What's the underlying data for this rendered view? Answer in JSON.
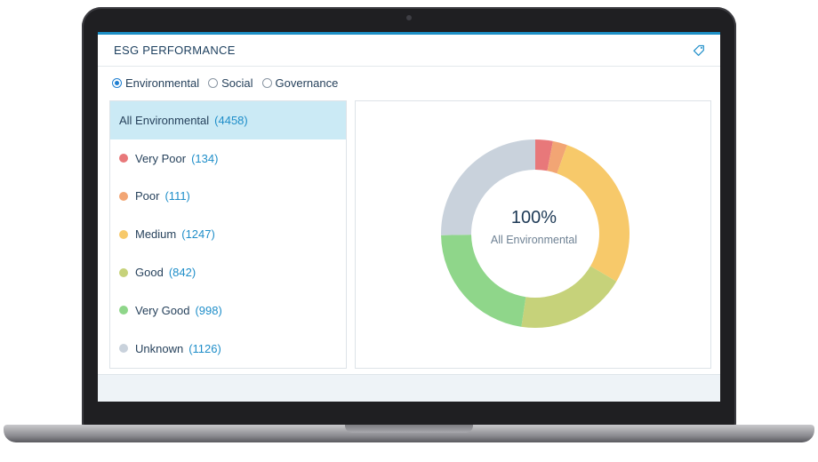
{
  "widget": {
    "title": "ESG PERFORMANCE",
    "icon": "tag-icon"
  },
  "radios": [
    {
      "label": "Environmental",
      "checked": true
    },
    {
      "label": "Social",
      "checked": false
    },
    {
      "label": "Governance",
      "checked": false
    }
  ],
  "legend": [
    {
      "label": "All Environmental",
      "count": "(4458)",
      "color": null,
      "active": true
    },
    {
      "label": "Very Poor",
      "count": "(134)",
      "color": "#e8787a",
      "active": false
    },
    {
      "label": "Poor",
      "count": "(111)",
      "color": "#f2a574",
      "active": false
    },
    {
      "label": "Medium",
      "count": "(1247)",
      "color": "#f7c96a",
      "active": false
    },
    {
      "label": "Good",
      "count": "(842)",
      "color": "#c6d27a",
      "active": false
    },
    {
      "label": "Very Good",
      "count": "(998)",
      "color": "#8fd68a",
      "active": false
    },
    {
      "label": "Unknown",
      "count": "(1126)",
      "color": "#c9d2dc",
      "active": false
    }
  ],
  "center": {
    "percent": "100%",
    "label": "All Environmental"
  },
  "colors": {
    "accent": "#1c8fc6",
    "count_text": "#1f8ec9",
    "active_row": "#cbeaf5"
  }
}
